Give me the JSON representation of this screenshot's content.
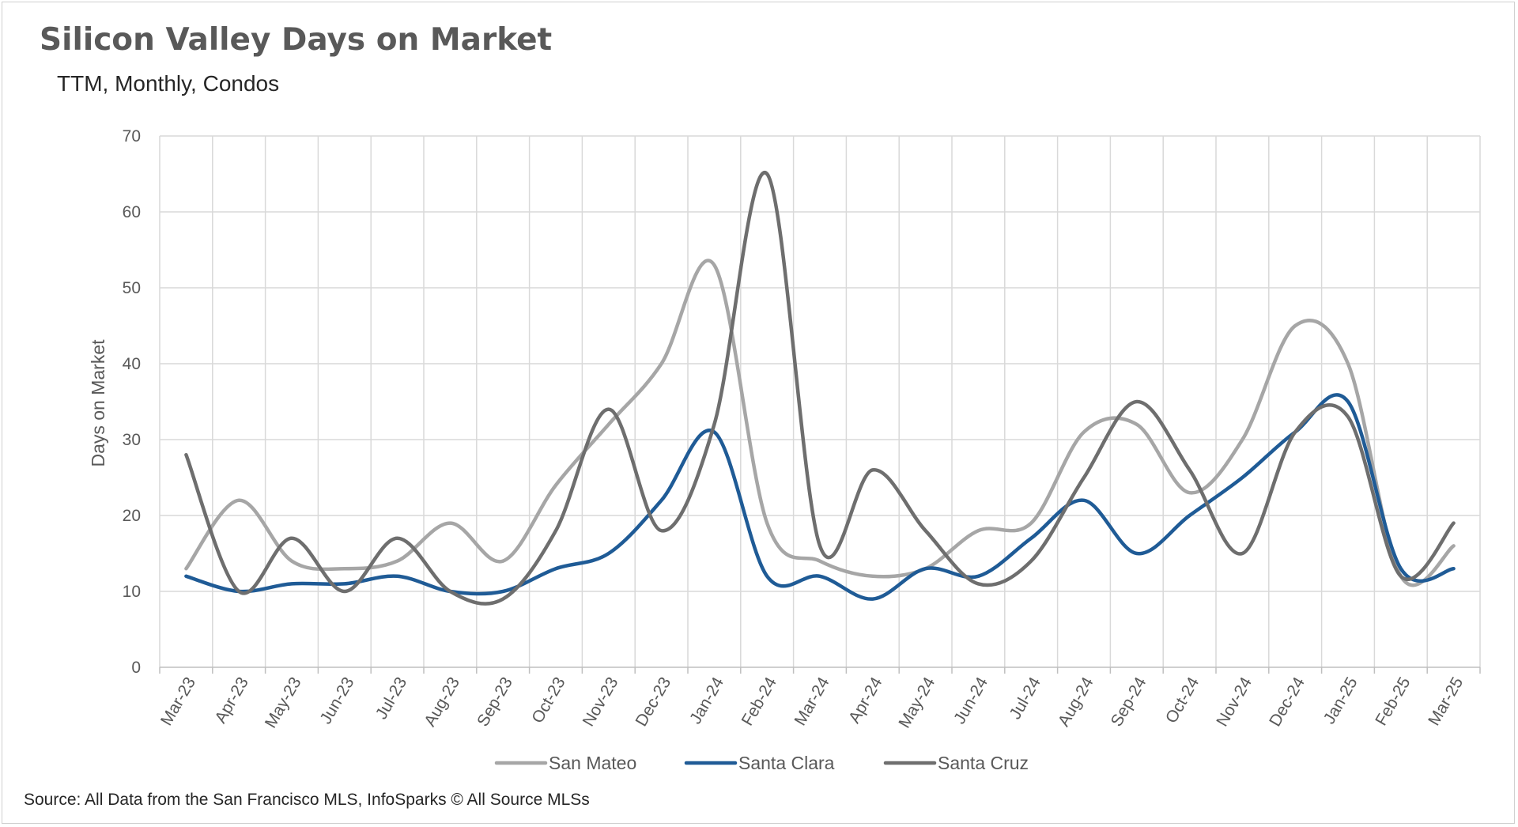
{
  "source_note": "Source: All Data from the San Francisco MLS, InfoSparks © All Source MLSs",
  "chart_data": {
    "type": "line",
    "title": "Silicon Valley Days on Market",
    "subtitle": "TTM, Monthly, Condos",
    "ylabel": "Days on Market",
    "xlabel": "",
    "ylim": [
      0,
      70
    ],
    "yticks": [
      0,
      10,
      20,
      30,
      40,
      50,
      60,
      70
    ],
    "grid": true,
    "legend_position": "bottom",
    "smooth": true,
    "categories": [
      "Mar-23",
      "Apr-23",
      "May-23",
      "Jun-23",
      "Jul-23",
      "Aug-23",
      "Sep-23",
      "Oct-23",
      "Nov-23",
      "Dec-23",
      "Jan-24",
      "Feb-24",
      "Mar-24",
      "Apr-24",
      "May-24",
      "Jun-24",
      "Jul-24",
      "Aug-24",
      "Sep-24",
      "Oct-24",
      "Nov-24",
      "Dec-24",
      "Jan-25",
      "Feb-25",
      "Mar-25"
    ],
    "series": [
      {
        "name": "San Mateo",
        "color": "#a6a6a6",
        "values": [
          13,
          22,
          14,
          13,
          14,
          19,
          14,
          24,
          32,
          40,
          53,
          19,
          14,
          12,
          13,
          18,
          19,
          31,
          32,
          23,
          30,
          45,
          40,
          12,
          16
        ]
      },
      {
        "name": "Santa Clara",
        "color": "#1f5b96",
        "values": [
          12,
          10,
          11,
          11,
          12,
          10,
          10,
          13,
          15,
          22,
          31,
          12,
          12,
          9,
          13,
          12,
          17,
          22,
          15,
          20,
          25,
          31,
          35,
          13,
          13
        ]
      },
      {
        "name": "Santa Cruz",
        "color": "#6e6e6e",
        "values": [
          28,
          10,
          17,
          10,
          17,
          10,
          9,
          18,
          34,
          18,
          32,
          65,
          16,
          26,
          18,
          11,
          14,
          25,
          35,
          26,
          15,
          31,
          33,
          12,
          19
        ]
      }
    ]
  }
}
